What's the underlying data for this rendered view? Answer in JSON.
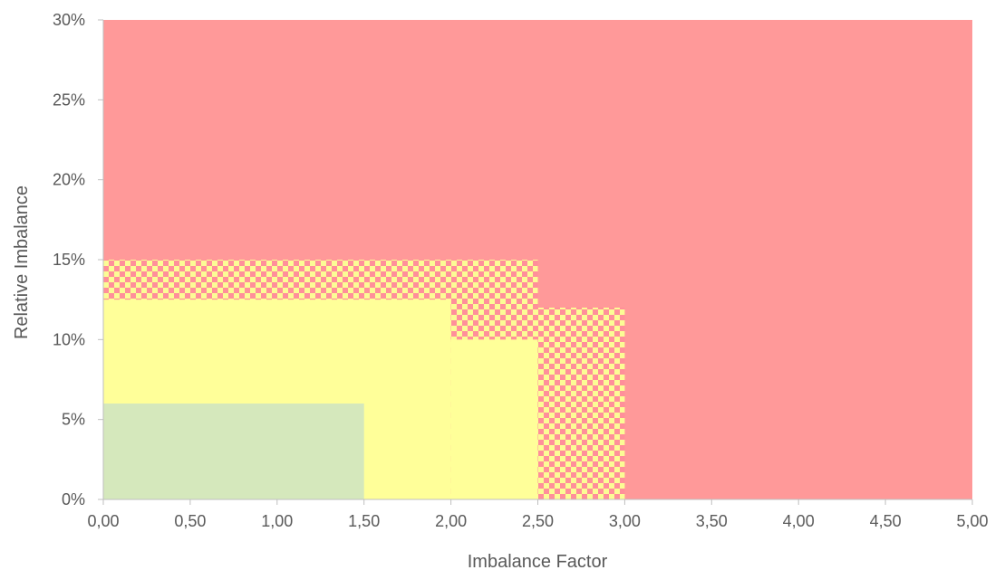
{
  "chart_data": {
    "type": "area",
    "title": "",
    "xlabel": "Imbalance Factor",
    "ylabel": "Relative Imbalance",
    "xlim": [
      0,
      5
    ],
    "ylim": [
      0,
      30
    ],
    "x_ticks": [
      0,
      0.5,
      1,
      1.5,
      2,
      2.5,
      3,
      3.5,
      4,
      4.5,
      5
    ],
    "x_tick_labels": [
      "0,00",
      "0,50",
      "1,00",
      "1,50",
      "2,00",
      "2,50",
      "3,00",
      "3,50",
      "4,00",
      "4,50",
      "5,00"
    ],
    "y_ticks": [
      0,
      5,
      10,
      15,
      20,
      25,
      30
    ],
    "y_tick_labels": [
      "0%",
      "5%",
      "10%",
      "15%",
      "20%",
      "25%",
      "30%"
    ],
    "grid": false,
    "legend": "none",
    "colors": {
      "red": "#ff9999",
      "yellow": "#ffff99",
      "green": "#d5e8bc",
      "checker_pink": "#ff8f9a",
      "checker_yellow": "#fcfc95",
      "axis": "#bfbfbf",
      "text": "#595959"
    },
    "regions": [
      {
        "zone": "red",
        "x": [
          0,
          5
        ],
        "y": [
          0,
          30
        ]
      },
      {
        "zone": "checkered",
        "x": [
          0,
          2.5
        ],
        "y": [
          0,
          15
        ]
      },
      {
        "zone": "checkered",
        "x": [
          2.5,
          3.0
        ],
        "y": [
          0,
          12
        ]
      },
      {
        "zone": "yellow",
        "x": [
          0,
          2.0
        ],
        "y": [
          0,
          12.5
        ]
      },
      {
        "zone": "yellow",
        "x": [
          2.0,
          2.5
        ],
        "y": [
          0,
          10
        ]
      },
      {
        "zone": "green",
        "x": [
          0,
          1.5
        ],
        "y": [
          0,
          6
        ]
      }
    ]
  }
}
